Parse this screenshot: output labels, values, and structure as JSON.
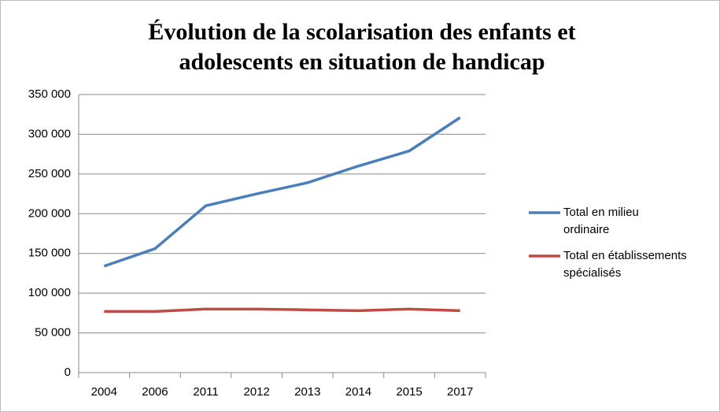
{
  "chart_data": {
    "type": "line",
    "title": "Évolution de la scolarisation des enfants et adolescents en situation de handicap",
    "categories": [
      "2004",
      "2006",
      "2011",
      "2012",
      "2013",
      "2014",
      "2015",
      "2017"
    ],
    "series": [
      {
        "name": "Total en milieu ordinaire",
        "color": "#4a7ebb",
        "values": [
          134000,
          156000,
          210000,
          225000,
          239000,
          260000,
          279000,
          321000
        ]
      },
      {
        "name": "Total en établissements spécialisés",
        "color": "#be4b48",
        "values": [
          77000,
          77000,
          80000,
          80000,
          79000,
          78000,
          80000,
          78000
        ]
      }
    ],
    "ylim": [
      0,
      350000
    ],
    "yticks": [
      0,
      {
        "value": 50000,
        "label": "50 000"
      },
      {
        "value": 100000,
        "label": "100 000"
      },
      {
        "value": 150000,
        "label": "150 000"
      },
      {
        "value": 200000,
        "label": "200 000"
      },
      {
        "value": 250000,
        "label": "250 000"
      },
      {
        "value": 300000,
        "label": "300 000"
      },
      {
        "value": 350000,
        "label": "350 000"
      }
    ],
    "grid": true,
    "legend": "right"
  }
}
